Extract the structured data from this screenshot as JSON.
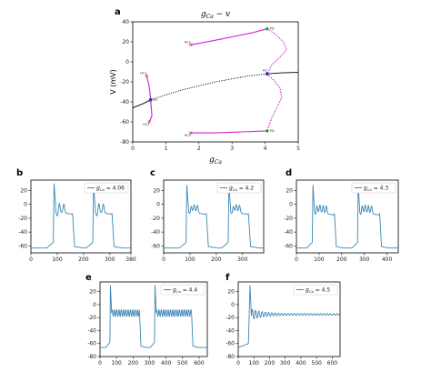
{
  "colors": {
    "trace": "#3a87b5",
    "magenta": "#d21ed2",
    "marker_red": "#e0304a",
    "marker_blue": "#3030c8",
    "marker_green": "#2a9a3a",
    "axis": "#000000"
  },
  "figure": {
    "panel_labels": [
      "a",
      "b",
      "c",
      "d",
      "e",
      "f"
    ]
  },
  "chart_data": [
    {
      "panel": "a",
      "type": "line",
      "title_main": "g",
      "title_sub": "Ca",
      "title_tail": " − v",
      "xlabel_main": "g",
      "xlabel_sub": "Ca",
      "ylabel": "V (mV)",
      "xlim": [
        0,
        5
      ],
      "ylim": [
        -80,
        40
      ],
      "xticks": [
        0,
        1,
        2,
        3,
        4,
        5
      ],
      "yticks": [
        -80,
        -60,
        -40,
        -20,
        0,
        20,
        40
      ],
      "grid": false,
      "series": [
        {
          "style": "solid-black",
          "points": [
            [
              0,
              -46
            ],
            [
              0.3,
              -42
            ],
            [
              0.54,
              -38
            ]
          ]
        },
        {
          "style": "dotted-black",
          "points": [
            [
              0.54,
              -38
            ],
            [
              1.0,
              -33
            ],
            [
              1.5,
              -28
            ],
            [
              2.0,
              -24
            ],
            [
              2.5,
              -20
            ],
            [
              3.0,
              -17
            ],
            [
              3.5,
              -14
            ],
            [
              4.06,
              -12
            ]
          ]
        },
        {
          "style": "solid-black",
          "points": [
            [
              4.06,
              -12
            ],
            [
              4.5,
              -11
            ],
            [
              5.0,
              -10.5
            ]
          ]
        },
        {
          "style": "magenta-solid",
          "points": [
            [
              1.75,
              17
            ],
            [
              2.4,
              21
            ],
            [
              3.0,
              25
            ],
            [
              3.6,
              29
            ],
            [
              4.06,
              33
            ]
          ]
        },
        {
          "style": "magenta-solid",
          "points": [
            [
              1.75,
              -71
            ],
            [
              2.5,
              -71
            ],
            [
              3.3,
              -70
            ],
            [
              4.06,
              -69
            ]
          ]
        },
        {
          "style": "magenta-solid",
          "points": [
            [
              0.42,
              -14
            ],
            [
              0.48,
              -22
            ],
            [
              0.52,
              -30
            ],
            [
              0.54,
              -38
            ],
            [
              0.56,
              -46
            ],
            [
              0.58,
              -54
            ],
            [
              0.5,
              -60
            ]
          ]
        },
        {
          "style": "magenta-dotted",
          "points": [
            [
              4.06,
              33
            ],
            [
              4.3,
              28
            ],
            [
              4.55,
              20
            ],
            [
              4.65,
              12
            ],
            [
              4.45,
              5
            ],
            [
              4.2,
              -3
            ],
            [
              4.06,
              -12
            ]
          ]
        },
        {
          "style": "magenta-dotted",
          "points": [
            [
              4.06,
              -12
            ],
            [
              4.25,
              -18
            ],
            [
              4.45,
              -26
            ],
            [
              4.5,
              -36
            ],
            [
              4.35,
              -46
            ],
            [
              4.2,
              -56
            ],
            [
              4.06,
              -69
            ]
          ]
        }
      ],
      "markers": [
        {
          "label": "HC2",
          "x": 1.75,
          "y": 17,
          "color": "red",
          "shape": "x"
        },
        {
          "label": "HC2",
          "x": 1.75,
          "y": -71,
          "color": "red",
          "shape": "x"
        },
        {
          "label": "PD",
          "x": 4.06,
          "y": 33,
          "color": "green",
          "shape": "diamond"
        },
        {
          "label": "PD",
          "x": 4.06,
          "y": -69,
          "color": "green",
          "shape": "diamond"
        },
        {
          "label": "H2",
          "x": 4.06,
          "y": -12,
          "color": "blue",
          "shape": "dot"
        },
        {
          "label": "H1",
          "x": 0.54,
          "y": -38,
          "color": "blue",
          "shape": "dot"
        },
        {
          "label": "HC1",
          "x": 0.42,
          "y": -14,
          "color": "red",
          "shape": "x"
        },
        {
          "label": "HC1",
          "x": 0.5,
          "y": -60,
          "color": "red",
          "shape": "x"
        }
      ]
    },
    {
      "panel": "b",
      "type": "line",
      "legend_main": "g",
      "legend_sub": "Ca",
      "legend_value": " = 4.06",
      "xlim": [
        0,
        380
      ],
      "ylim": [
        -70,
        35
      ],
      "xticks": [
        0,
        100,
        200,
        300,
        380
      ],
      "yticks": [
        -60,
        -40,
        -20,
        0,
        20
      ],
      "osc": {
        "spikes": [
          {
            "t": 85,
            "small": [
              108,
              125
            ],
            "end": 158
          },
          {
            "t": 235,
            "small": [
              258,
              275
            ],
            "end": 308
          }
        ],
        "base": -63,
        "peak": 30,
        "plateau": -15,
        "small_amp": 8,
        "tail": -55
      }
    },
    {
      "panel": "c",
      "type": "line",
      "legend_main": "g",
      "legend_sub": "Ca",
      "legend_value": " = 4.2",
      "xlim": [
        0,
        380
      ],
      "ylim": [
        -70,
        35
      ],
      "xticks": [
        0,
        100,
        200,
        300
      ],
      "yticks": [
        -60,
        -40,
        -20,
        0,
        20
      ],
      "osc": {
        "spikes": [
          {
            "t": 85,
            "small": [
              104,
              116,
              128
            ],
            "end": 162
          },
          {
            "t": 245,
            "small": [
              264,
              276,
              288
            ],
            "end": 322
          }
        ],
        "base": -63,
        "peak": 28,
        "plateau": -15,
        "small_amp": 7,
        "tail": -55
      }
    },
    {
      "panel": "d",
      "type": "line",
      "legend_main": "g",
      "legend_sub": "Ca",
      "legend_value": " = 4.3",
      "xlim": [
        0,
        450
      ],
      "ylim": [
        -70,
        35
      ],
      "xticks": [
        0,
        100,
        200,
        300,
        400
      ],
      "yticks": [
        -60,
        -40,
        -20,
        0,
        20
      ],
      "osc": {
        "spikes": [
          {
            "t": 70,
            "small": [
              90,
              104,
              118,
              132
            ],
            "end": 168
          },
          {
            "t": 270,
            "small": [
              290,
              304,
              318,
              332
            ],
            "end": 368
          }
        ],
        "base": -63,
        "peak": 28,
        "plateau": -15,
        "small_amp": 7,
        "tail": -55
      }
    },
    {
      "panel": "e",
      "type": "line",
      "legend_main": "g",
      "legend_sub": "Ca",
      "legend_value": " = 4.4",
      "xlim": [
        0,
        650
      ],
      "ylim": [
        -80,
        35
      ],
      "xticks": [
        0,
        100,
        200,
        300,
        400,
        500,
        600
      ],
      "yticks": [
        -80,
        -60,
        -40,
        -20,
        0,
        20
      ],
      "osc": {
        "spikes": [
          {
            "t": 60,
            "small": [],
            "end": 240,
            "dense": true
          },
          {
            "t": 330,
            "small": [],
            "end": 555,
            "dense": true
          }
        ],
        "base": -66,
        "peak": 30,
        "plateau": -15,
        "small_amp": 5,
        "tail": -55
      }
    },
    {
      "panel": "f",
      "type": "line",
      "legend_main": "g",
      "legend_sub": "Ca",
      "legend_value": " = 4.5",
      "xlim": [
        0,
        650
      ],
      "ylim": [
        -80,
        35
      ],
      "xticks": [
        0,
        100,
        200,
        300,
        400,
        500,
        600
      ],
      "yticks": [
        -80,
        -60,
        -40,
        -20,
        0,
        20
      ],
      "osc": {
        "damped": true,
        "t0": 75,
        "base": -66,
        "peak": 30,
        "plateau": -15
      }
    }
  ]
}
